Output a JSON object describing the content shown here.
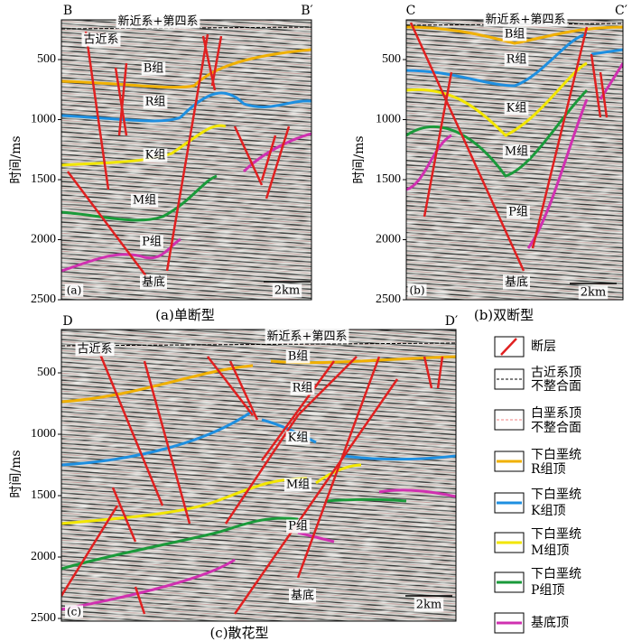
{
  "panels": [
    {
      "tag": "(a)",
      "caption": "(a)单断型",
      "left_label": "B",
      "right_label": "B′",
      "y_axis_label": "时间/ms",
      "y_ticks": [
        500,
        1000,
        1500,
        2000,
        2500
      ],
      "labels": [
        "新近系+第四系",
        "古近系",
        "B组",
        "R组",
        "K组",
        "M组",
        "P组",
        "基底"
      ],
      "scale_bar": "2km"
    },
    {
      "tag": "(b)",
      "caption": "(b)双断型",
      "left_label": "C",
      "right_label": "C′",
      "y_axis_label": "时间/ms",
      "y_ticks": [
        500,
        1000,
        1500,
        2000,
        2500
      ],
      "labels": [
        "新近系+第四系",
        "B组",
        "R组",
        "K组",
        "M组",
        "P组",
        "基底"
      ],
      "scale_bar": "2km"
    },
    {
      "tag": "(c)",
      "caption": "(c)散花型",
      "left_label": "D",
      "right_label": "D′",
      "y_axis_label": "时间/ms",
      "y_ticks": [
        500,
        1000,
        1500,
        2000,
        2500
      ],
      "labels": [
        "新近系+第四系",
        "古近系",
        "B组",
        "R组",
        "K组",
        "M组",
        "P组",
        "基底"
      ],
      "scale_bar": "2km"
    }
  ],
  "legend": [
    {
      "lines": [
        "断层"
      ]
    },
    {
      "lines": [
        "古近系顶",
        "不整合面"
      ]
    },
    {
      "lines": [
        "白垩系顶",
        "不整合面"
      ]
    },
    {
      "lines": [
        "下白垩统",
        "R组顶"
      ]
    },
    {
      "lines": [
        "下白垩统",
        "K组顶"
      ]
    },
    {
      "lines": [
        "下白垩统",
        "M组顶"
      ]
    },
    {
      "lines": [
        "下白垩统",
        "P组顶"
      ]
    },
    {
      "lines": [
        "基底顶"
      ]
    }
  ]
}
